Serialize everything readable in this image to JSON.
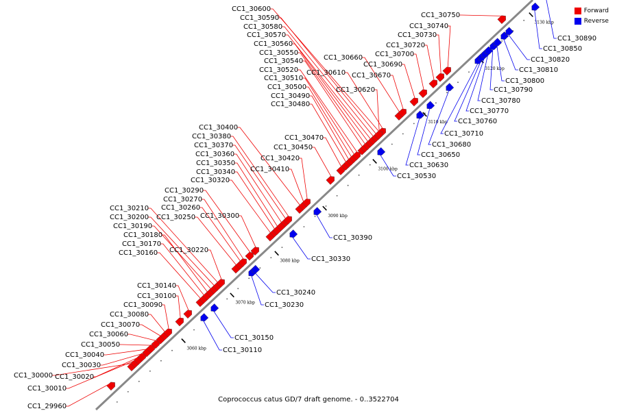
{
  "title": "Coprococcus catus GD/7 draft genome. - 0..3522704",
  "colors": {
    "forward": "#ee0000",
    "reverse": "#0000ee",
    "axis": "#888888"
  },
  "legend": [
    {
      "label": "Forward",
      "strand": "forward"
    },
    {
      "label": "Reverse",
      "strand": "reverse"
    }
  ],
  "ticks": [
    "3060 kbp",
    "3070 kbp",
    "3080 kbp",
    "3090 kbp",
    "3100 kbp",
    "3110 kbp",
    "3120 kbp",
    "3130 kbp"
  ],
  "forward_genes": [
    "CC1_29960",
    "CC1_30000",
    "CC1_30010",
    "CC1_30020",
    "CC1_30030",
    "CC1_30040",
    "CC1_30050",
    "CC1_30060",
    "CC1_30070",
    "CC1_30080",
    "CC1_30090",
    "CC1_30100",
    "CC1_30140",
    "CC1_30160",
    "CC1_30170",
    "CC1_30180",
    "CC1_30190",
    "CC1_30200",
    "CC1_30210",
    "CC1_30220",
    "CC1_30250",
    "CC1_30260",
    "CC1_30270",
    "CC1_30290",
    "CC1_30300",
    "CC1_30320",
    "CC1_30340",
    "CC1_30350",
    "CC1_30360",
    "CC1_30370",
    "CC1_30380",
    "CC1_30400",
    "CC1_30410",
    "CC1_30420",
    "CC1_30450",
    "CC1_30470",
    "CC1_30480",
    "CC1_30490",
    "CC1_30500",
    "CC1_30510",
    "CC1_30520",
    "CC1_30540",
    "CC1_30550",
    "CC1_30560",
    "CC1_30570",
    "CC1_30580",
    "CC1_30590",
    "CC1_30600",
    "CC1_30610",
    "CC1_30620",
    "CC1_30660",
    "CC1_30670",
    "CC1_30690",
    "CC1_30700",
    "CC1_30720",
    "CC1_30730",
    "CC1_30740",
    "CC1_30750"
  ],
  "reverse_genes": [
    "CC1_30110",
    "CC1_30150",
    "CC1_30230",
    "CC1_30240",
    "CC1_30330",
    "CC1_30390",
    "CC1_30530",
    "CC1_30630",
    "CC1_30650",
    "CC1_30680",
    "CC1_30710",
    "CC1_30760",
    "CC1_30770",
    "CC1_30780",
    "CC1_30790",
    "CC1_30800",
    "CC1_30810",
    "CC1_30820",
    "CC1_30850",
    "CC1_30890"
  ]
}
